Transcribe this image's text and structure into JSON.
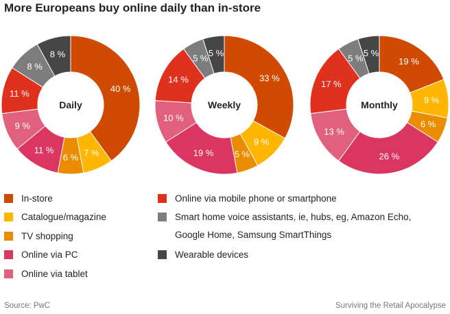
{
  "title": "More Europeans buy online daily than in-store",
  "chart_data": {
    "type": "pie",
    "variant": "donut",
    "categories": [
      "In-store",
      "Catalogue/magazine",
      "TV shopping",
      "Online via PC",
      "Online via tablet",
      "Online via mobile phone or smartphone",
      "Smart home voice assistants, ie, hubs, eg, Amazon Echo, Google Home, Samsung SmartThings",
      "Wearable devices"
    ],
    "colors": [
      "#d04a02",
      "#ffb600",
      "#eb8c00",
      "#db3661",
      "#e0607e",
      "#e0301e",
      "#7d7d7d",
      "#464646"
    ],
    "charts": [
      {
        "name": "Daily",
        "values": [
          40,
          7,
          6,
          11,
          9,
          11,
          8,
          8
        ]
      },
      {
        "name": "Weekly",
        "values": [
          33,
          9,
          5,
          19,
          10,
          14,
          5,
          5
        ]
      },
      {
        "name": "Monthly",
        "values": [
          19,
          9,
          6,
          26,
          13,
          17,
          5,
          5
        ]
      }
    ],
    "unit": "%",
    "legend_position": "bottom"
  },
  "legend": {
    "left": [
      {
        "label": "In-store",
        "color": "#d04a02"
      },
      {
        "label": "Catalogue/magazine",
        "color": "#ffb600"
      },
      {
        "label": "TV shopping",
        "color": "#eb8c00"
      },
      {
        "label": "Online via PC",
        "color": "#db3661"
      },
      {
        "label": "Online via tablet",
        "color": "#e0607e"
      }
    ],
    "right": [
      {
        "label": "Online via mobile phone or smartphone",
        "color": "#e0301e"
      },
      {
        "label": "Smart home voice assistants, ie, hubs, eg, Amazon Echo,",
        "label_line2": "Google Home, Samsung SmartThings",
        "color": "#7d7d7d"
      },
      {
        "label": "Wearable devices",
        "color": "#464646"
      }
    ]
  },
  "footer": {
    "source": "Source: PwC",
    "credit": "Surviving the Retail Apocalypse"
  }
}
